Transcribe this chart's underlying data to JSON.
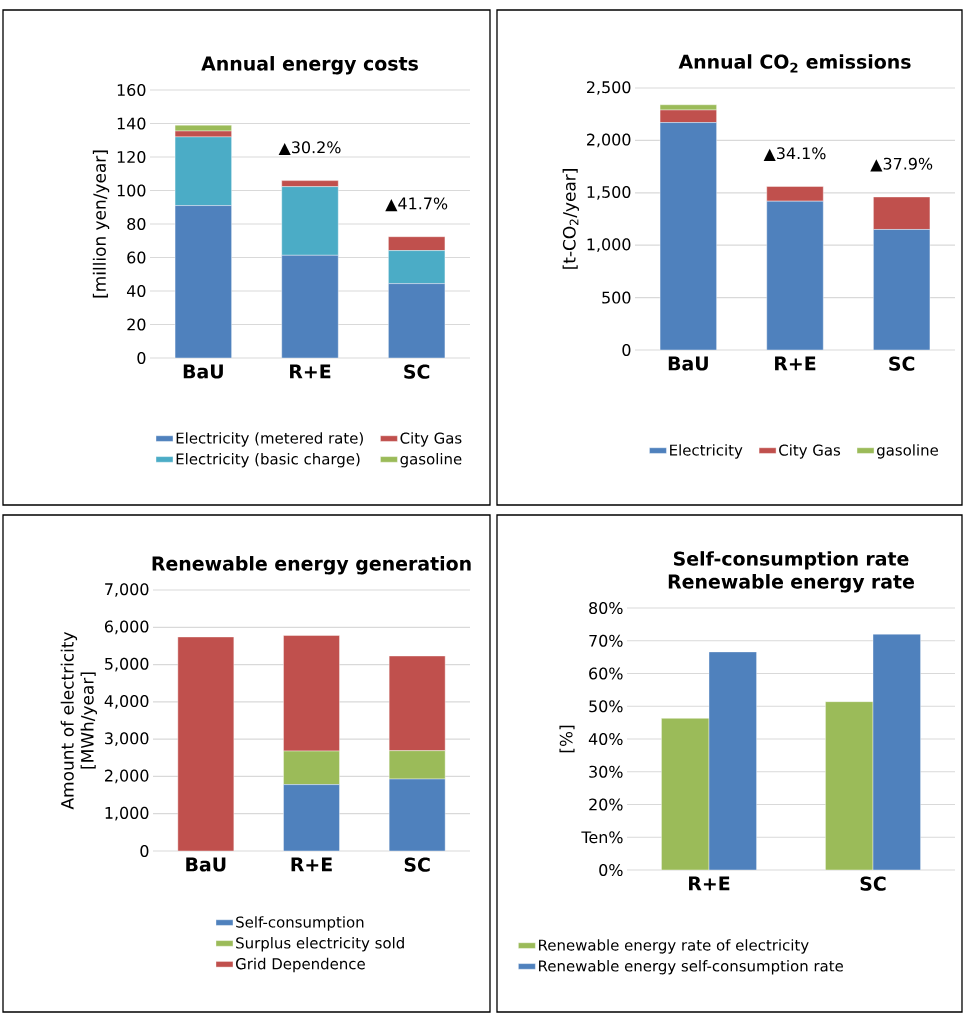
{
  "chart_data": [
    {
      "type": "bar",
      "stacked": true,
      "title": "Annual energy costs",
      "ylabel": "[million yen/year]",
      "categories": [
        "BaU",
        "R+E",
        "SC"
      ],
      "ylim": [
        0,
        160
      ],
      "yticks": [
        0,
        20,
        40,
        60,
        80,
        100,
        120,
        140,
        160
      ],
      "grid": "y",
      "legend": "bottom",
      "series": [
        {
          "name": "Electricity (metered rate)",
          "color": "#4f81bd",
          "values": [
            91,
            61.3,
            44.4
          ]
        },
        {
          "name": "Electricity (basic charge)",
          "color": "#4bacc6",
          "values": [
            41,
            41,
            19.7
          ]
        },
        {
          "name": "City Gas",
          "color": "#c0504d",
          "values": [
            3.5,
            3.6,
            8.3
          ]
        },
        {
          "name": "gasoline",
          "color": "#9bbb59",
          "values": [
            3.5,
            0,
            0
          ]
        }
      ],
      "annotations": [
        "▲30.2%",
        "▲41.7%"
      ]
    },
    {
      "type": "bar",
      "stacked": true,
      "title": "Annual CO$_{2}$ emissions",
      "ylabel": "[t-CO$_{2}$/year]",
      "categories": [
        "BaU",
        "R+E",
        "SC"
      ],
      "ylim": [
        0,
        2500
      ],
      "yticks": [
        0,
        500,
        {
          "value": 1000,
          "label": "1,000"
        },
        {
          "value": 1500,
          "label": "1,500"
        },
        {
          "value": 2000,
          "label": "2,000"
        },
        {
          "value": 2500,
          "label": "2,500"
        }
      ],
      "grid": "y",
      "legend": "bottom",
      "series": [
        {
          "name": "Electricity",
          "color": "#4f81bd",
          "values": [
            2170,
            1420,
            1150
          ]
        },
        {
          "name": "City Gas",
          "color": "#c0504d",
          "values": [
            120,
            140,
            310
          ]
        },
        {
          "name": "gasoline",
          "color": "#9bbb59",
          "values": [
            50,
            0,
            0
          ]
        }
      ],
      "annotations": [
        "▲34.1%",
        "▲37.9%"
      ]
    },
    {
      "type": "bar",
      "stacked": true,
      "title": "Renewable energy generation",
      "ylabel": "Amount of electricity [MWh/year]",
      "categories": [
        "BaU",
        "R+E",
        "SC"
      ],
      "ylim": [
        0,
        7000
      ],
      "yticks": [
        0,
        {
          "value": 1000,
          "label": "1,000"
        },
        {
          "value": 2000,
          "label": "2,000"
        },
        {
          "value": 3000,
          "label": "3,000"
        },
        {
          "value": 4000,
          "label": "4,000"
        },
        {
          "value": 5000,
          "label": "5,000"
        },
        {
          "value": 6000,
          "label": "6,000"
        },
        {
          "value": 7000,
          "label": "7,000"
        }
      ],
      "grid": "y",
      "legend": "bottom",
      "series": [
        {
          "name": "Self-consumption",
          "color": "#4f81bd",
          "values": [
            0,
            1780,
            1930
          ]
        },
        {
          "name": "Surplus electricity sold",
          "color": "#9bbb59",
          "values": [
            0,
            900,
            760
          ]
        },
        {
          "name": "Grid Dependence",
          "color": "#c0504d",
          "values": [
            5740,
            3100,
            2540
          ]
        }
      ]
    },
    {
      "type": "bar",
      "title": "Self-consumption rate Renewable energy rate",
      "ylabel": "[%]",
      "categories": [
        "R+E",
        "SC"
      ],
      "ylim": [
        0,
        80
      ],
      "yticks": [
        {
          "value": 0,
          "label": "0%"
        },
        {
          "value": 10,
          "label": "Ten%"
        },
        {
          "value": 20,
          "label": "20%"
        },
        {
          "value": 30,
          "label": "30%"
        },
        {
          "value": 40,
          "label": "40%"
        },
        {
          "value": 50,
          "label": "50%"
        },
        {
          "value": 60,
          "label": "60%"
        },
        {
          "value": 70,
          "label": "70%"
        },
        {
          "value": 80,
          "label": "80%"
        }
      ],
      "grid": "y",
      "legend": "bottom",
      "series": [
        {
          "name": "Renewable energy rate of electricity",
          "color": "#9bbb59",
          "values": [
            46.3,
            51.4
          ]
        },
        {
          "name": "Renewable energy self-consumption rate",
          "color": "#4f81bd",
          "values": [
            66.6,
            72.0
          ]
        }
      ]
    }
  ]
}
